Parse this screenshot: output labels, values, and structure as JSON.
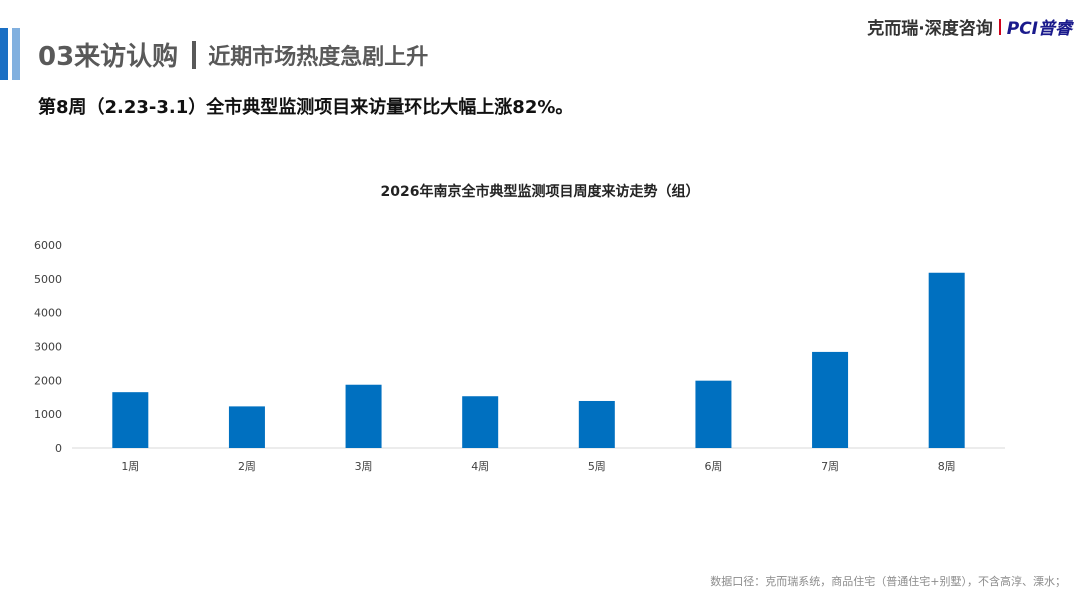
{
  "slide": {
    "section": "03来访认购",
    "subtitle": "近期市场热度急剧上升",
    "headline": "第8周（2.23-3.1）全市典型监测项目来访量环比大幅上涨82%。",
    "brand_text": "克而瑞·深度咨询",
    "brand_logo": "PCI普睿",
    "footnote": "数据口径：克而瑞系统，商品住宅（普通住宅+别墅），不含高淳、溧水；"
  },
  "colors": {
    "accent": "#1a6fc4",
    "bar": "#0070c0"
  },
  "chart_data": {
    "type": "bar",
    "title": "2026年南京全市典型监测项目周度来访走势（组）",
    "categories": [
      "1周",
      "2周",
      "3周",
      "4周",
      "5周",
      "6周",
      "7周",
      "8周"
    ],
    "values": [
      1650,
      1230,
      1870,
      1530,
      1390,
      1990,
      2840,
      5180
    ],
    "ylim": [
      0,
      6000
    ],
    "yticks": [
      0,
      1000,
      2000,
      3000,
      4000,
      5000,
      6000
    ],
    "grid": false,
    "legend": "none"
  }
}
